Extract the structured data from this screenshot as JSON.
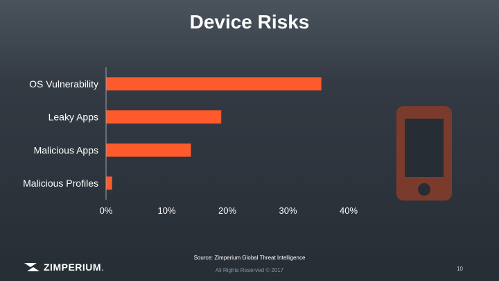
{
  "slide": {
    "title": "Device Risks",
    "source": "Source: Zimperium Global Threat Intelligence",
    "rights": "All Rights Reserved © 2017",
    "page_number": "10",
    "logo_text": "ZIMPERIUM",
    "logo_mark": "."
  },
  "icons": {
    "decoration": "smartphone-icon",
    "logo": "zimperium-logo-icon"
  },
  "colors": {
    "bar": "#ff5a2c",
    "phone_icon": "#7b3b2c",
    "axis": "#9aa3ad"
  },
  "chart_data": {
    "type": "bar",
    "orientation": "horizontal",
    "title": "Device Risks",
    "categories": [
      "OS Vulnerability",
      "Leaky Apps",
      "Malicious Apps",
      "Malicious Profiles"
    ],
    "values": [
      35.5,
      19,
      14,
      1
    ],
    "xlim": [
      0,
      40
    ],
    "xticks": [
      0,
      10,
      20,
      30,
      40
    ],
    "xtick_labels": [
      "0%",
      "10%",
      "20%",
      "30%",
      "40%"
    ],
    "xlabel": "",
    "ylabel": "",
    "grid": false,
    "legend": "none"
  }
}
